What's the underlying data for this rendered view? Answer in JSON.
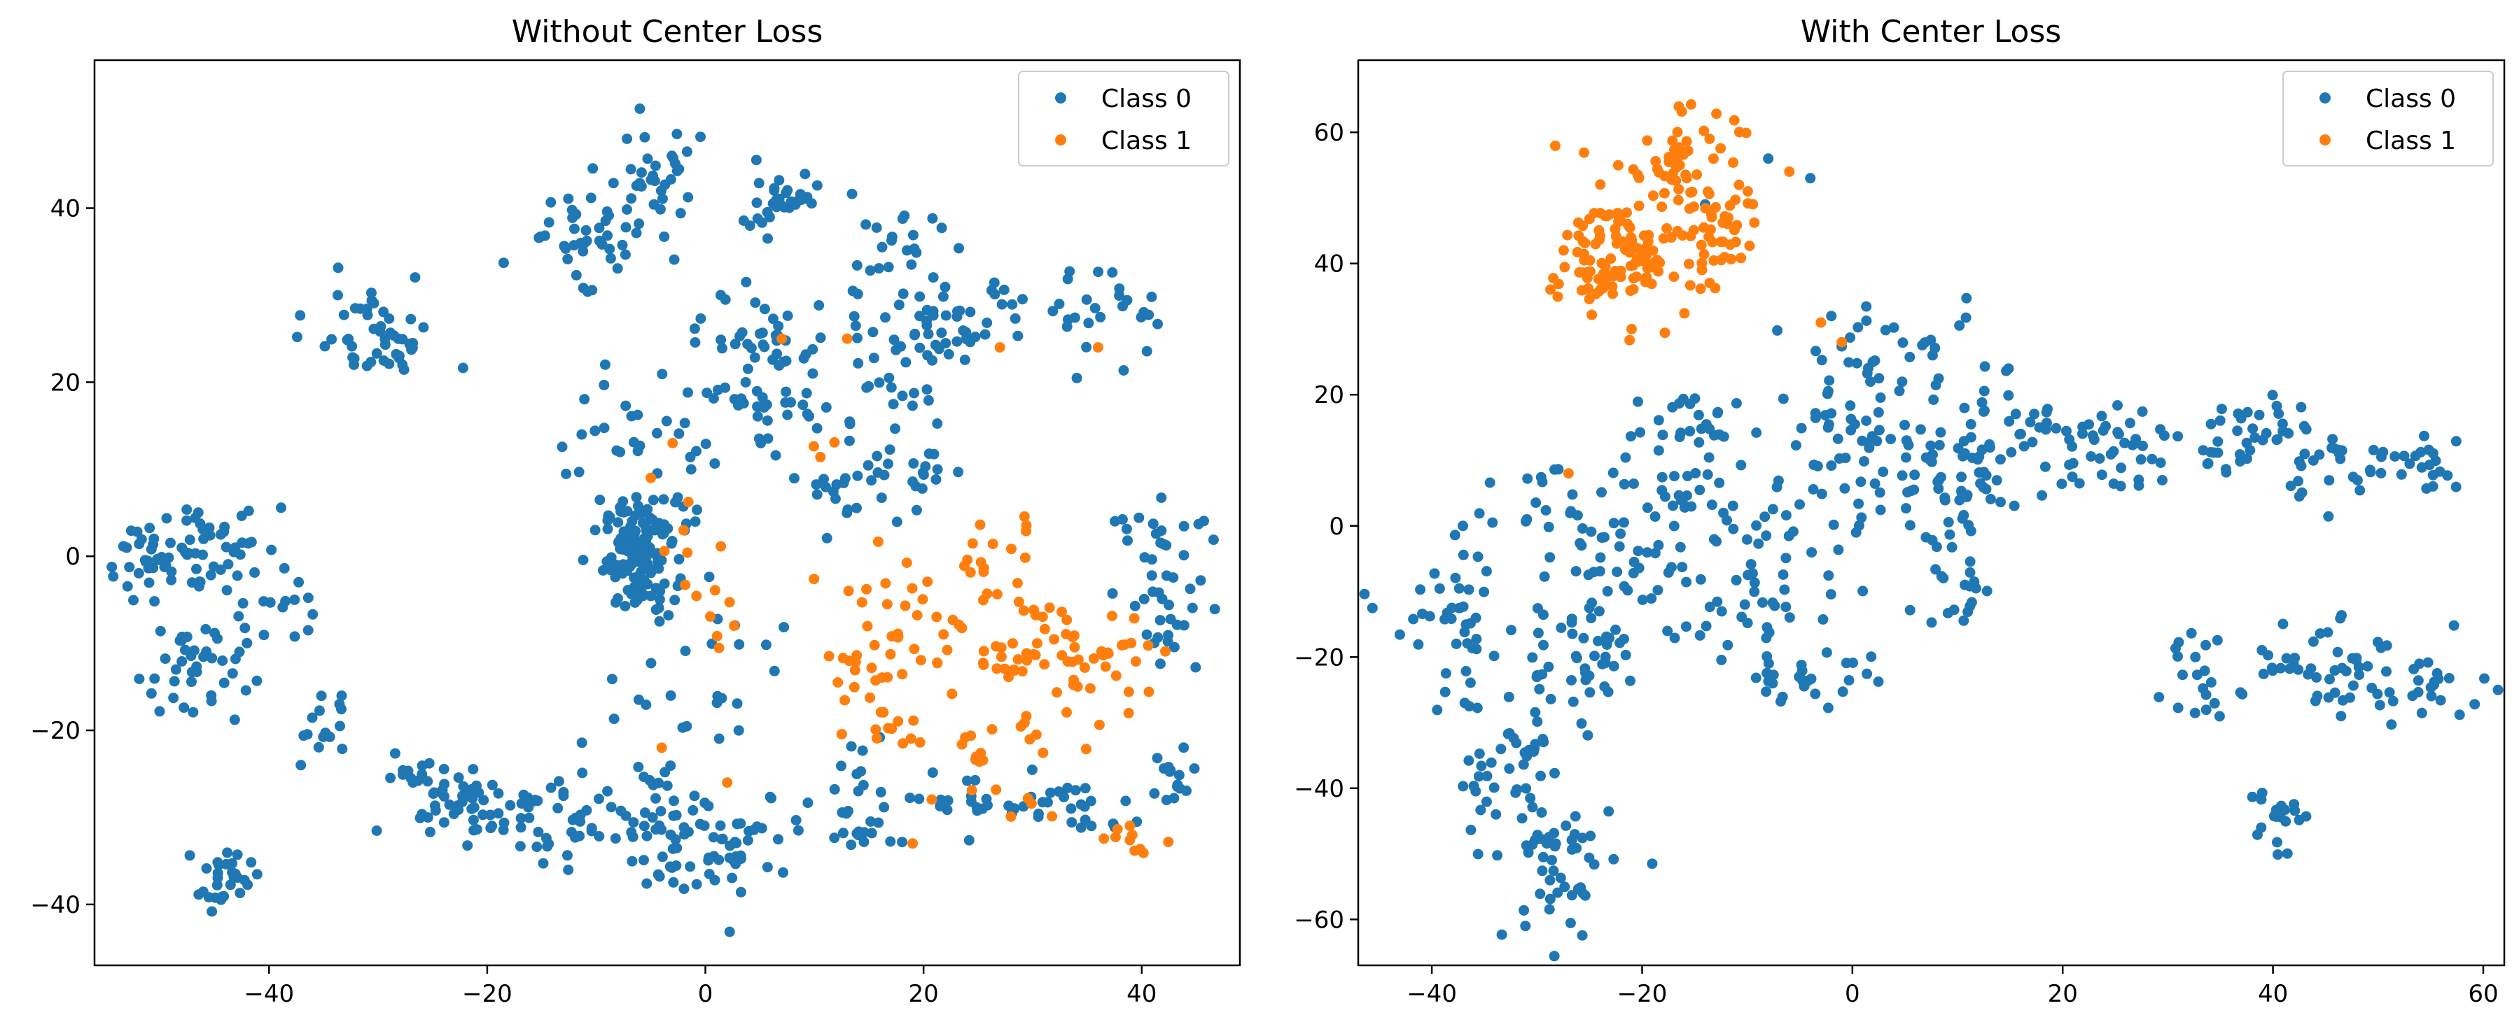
{
  "chart_data": [
    {
      "type": "scatter",
      "title": "Without Center Loss",
      "xlabel": "",
      "ylabel": "",
      "xlim": [
        -56,
        49
      ],
      "ylim": [
        -47,
        57
      ],
      "xticks": [
        -40,
        -20,
        0,
        20,
        40
      ],
      "yticks": [
        -40,
        -20,
        0,
        20,
        40
      ],
      "xtick_labels": [
        "−40",
        "−20",
        "0",
        "20",
        "40"
      ],
      "ytick_labels": [
        "−40",
        "−20",
        "0",
        "20",
        "40"
      ],
      "grid": false,
      "legend": "top-right",
      "series": [
        {
          "name": "Class 0",
          "color": "#1f77b4",
          "clusters": [
            {
              "cx": -6,
              "cy": 0,
              "sx": 1.6,
              "sy": 3.2,
              "n": 140
            },
            {
              "cx": -50,
              "cy": 0,
              "sx": 2.5,
              "sy": 2.5,
              "n": 40
            },
            {
              "cx": -44,
              "cy": 2,
              "sx": 2.5,
              "sy": 3,
              "n": 35
            },
            {
              "cx": -40,
              "cy": -6,
              "sx": 2,
              "sy": 2.5,
              "n": 15
            },
            {
              "cx": -47,
              "cy": -13,
              "sx": 2.5,
              "sy": 3,
              "n": 40
            },
            {
              "cx": -44,
              "cy": -37,
              "sx": 1.2,
              "sy": 1.6,
              "n": 30
            },
            {
              "cx": -35,
              "cy": -20,
              "sx": 1.5,
              "sy": 2,
              "n": 15
            },
            {
              "cx": -28,
              "cy": -24,
              "sx": 1.2,
              "sy": 1,
              "n": 8
            },
            {
              "cx": -30,
              "cy": 25,
              "sx": 3,
              "sy": 3,
              "n": 50
            },
            {
              "cx": -11,
              "cy": 37,
              "sx": 3,
              "sy": 2.5,
              "n": 45
            },
            {
              "cx": -5,
              "cy": 44,
              "sx": 2.5,
              "sy": 2.5,
              "n": 30
            },
            {
              "cx": 7,
              "cy": 41,
              "sx": 2.5,
              "sy": 2,
              "n": 35
            },
            {
              "cx": 17,
              "cy": 35,
              "sx": 2.5,
              "sy": 2,
              "n": 20
            },
            {
              "cx": 24,
              "cy": 28,
              "sx": 3,
              "sy": 2.5,
              "n": 35
            },
            {
              "cx": 37,
              "cy": 28,
              "sx": 2.5,
              "sy": 2.5,
              "n": 25
            },
            {
              "cx": 22,
              "cy": 25,
              "sx": 1.5,
              "sy": 1.5,
              "n": 10
            },
            {
              "cx": 6,
              "cy": 25,
              "sx": 3,
              "sy": 3,
              "n": 35
            },
            {
              "cx": 5,
              "cy": 16,
              "sx": 4,
              "sy": 3,
              "n": 40
            },
            {
              "cx": 16,
              "cy": 20,
              "sx": 2.5,
              "sy": 4,
              "n": 30
            },
            {
              "cx": -8,
              "cy": 14,
              "sx": 4,
              "sy": 4,
              "n": 25
            },
            {
              "cx": 13,
              "cy": 7,
              "sx": 2,
              "sy": 3,
              "n": 20
            },
            {
              "cx": 20,
              "cy": 10,
              "sx": 1.5,
              "sy": 2.5,
              "n": 15
            },
            {
              "cx": 42,
              "cy": 0,
              "sx": 2.5,
              "sy": 3,
              "n": 30
            },
            {
              "cx": 43,
              "cy": -8,
              "sx": 1.5,
              "sy": 3,
              "n": 15
            },
            {
              "cx": -23,
              "cy": -28,
              "sx": 3,
              "sy": 2,
              "n": 45
            },
            {
              "cx": -14,
              "cy": -30,
              "sx": 4,
              "sy": 3,
              "n": 45
            },
            {
              "cx": -5,
              "cy": -30,
              "sx": 3,
              "sy": 4,
              "n": 45
            },
            {
              "cx": 2,
              "cy": -33,
              "sx": 3,
              "sy": 3,
              "n": 45
            },
            {
              "cx": 15,
              "cy": -29,
              "sx": 3,
              "sy": 3,
              "n": 30
            },
            {
              "cx": 25,
              "cy": -28,
              "sx": 2,
              "sy": 2,
              "n": 20
            },
            {
              "cx": 33,
              "cy": -29,
              "sx": 3,
              "sy": 1.5,
              "n": 25
            },
            {
              "cx": 43,
              "cy": -26,
              "sx": 1.2,
              "sy": 3,
              "n": 15
            },
            {
              "cx": 1,
              "cy": -15,
              "sx": 4,
              "sy": 6,
              "n": 25
            },
            {
              "cx": -3,
              "cy": 5,
              "sx": 3,
              "sy": 4,
              "n": 10
            }
          ]
        },
        {
          "name": "Class 1",
          "color": "#ff7f0e",
          "clusters": [
            {
              "cx": 22,
              "cy": -7,
              "sx": 4,
              "sy": 5,
              "n": 40
            },
            {
              "cx": 30,
              "cy": -10,
              "sx": 3,
              "sy": 3,
              "n": 30
            },
            {
              "cx": 36,
              "cy": -12,
              "sx": 3,
              "sy": 3,
              "n": 30
            },
            {
              "cx": 15,
              "cy": -13,
              "sx": 2,
              "sy": 2,
              "n": 20
            },
            {
              "cx": 26,
              "cy": 1,
              "sx": 2,
              "sy": 2,
              "n": 10
            },
            {
              "cx": 17,
              "cy": -20,
              "sx": 2,
              "sy": 1,
              "n": 10
            },
            {
              "cx": 26,
              "cy": -23,
              "sx": 2.5,
              "sy": 2.5,
              "n": 20
            },
            {
              "cx": 39,
              "cy": -32,
              "sx": 1.5,
              "sy": 1,
              "n": 10
            },
            {
              "cx": -1,
              "cy": -5,
              "sx": 2,
              "sy": 4,
              "n": 12
            },
            {
              "cx": 12,
              "cy": 13,
              "sx": 1.5,
              "sy": 1.5,
              "n": 3
            },
            {
              "cx": 30,
              "cy": -30,
              "sx": 2,
              "sy": 2,
              "n": 4
            }
          ],
          "points": [
            [
              13,
              25
            ],
            [
              27,
              24
            ],
            [
              36,
              24
            ],
            [
              2,
              -26
            ],
            [
              -4,
              -22
            ],
            [
              19,
              -33
            ],
            [
              -5,
              9
            ],
            [
              -3,
              13
            ],
            [
              7,
              25
            ],
            [
              -2,
              3
            ]
          ]
        }
      ]
    },
    {
      "type": "scatter",
      "title": "With Center Loss",
      "xlabel": "",
      "ylabel": "",
      "xlim": [
        -47,
        62
      ],
      "ylim": [
        -67,
        71
      ],
      "xticks": [
        -40,
        -20,
        0,
        20,
        40,
        60
      ],
      "yticks": [
        -60,
        -40,
        -20,
        0,
        20,
        40,
        60
      ],
      "xtick_labels": [
        "−40",
        "−20",
        "0",
        "20",
        "40",
        "60"
      ],
      "ytick_labels": [
        "−60",
        "−40",
        "−20",
        "0",
        "20",
        "40",
        "60"
      ],
      "grid": false,
      "legend": "top-right",
      "series": [
        {
          "name": "Class 0",
          "color": "#1f77b4",
          "clusters": [
            {
              "cx": -38,
              "cy": -15,
              "sx": 3,
              "sy": 6,
              "n": 40
            },
            {
              "cx": -33,
              "cy": -38,
              "sx": 3,
              "sy": 6,
              "n": 40
            },
            {
              "cx": -28,
              "cy": -52,
              "sx": 2.5,
              "sy": 6,
              "n": 50
            },
            {
              "cx": -27,
              "cy": -22,
              "sx": 3,
              "sy": 6,
              "n": 45
            },
            {
              "cx": -22,
              "cy": -8,
              "sx": 4,
              "sy": 6,
              "n": 45
            },
            {
              "cx": -15,
              "cy": 5,
              "sx": 4,
              "sy": 6,
              "n": 45
            },
            {
              "cx": -8,
              "cy": -8,
              "sx": 4,
              "sy": 6,
              "n": 40
            },
            {
              "cx": -4,
              "cy": -22,
              "sx": 3,
              "sy": 3,
              "n": 30
            },
            {
              "cx": 0,
              "cy": 12,
              "sx": 4,
              "sy": 6,
              "n": 45
            },
            {
              "cx": 5,
              "cy": 25,
              "sx": 4,
              "sy": 4,
              "n": 35
            },
            {
              "cx": 8,
              "cy": 5,
              "sx": 5,
              "sy": 5,
              "n": 50
            },
            {
              "cx": 15,
              "cy": 14,
              "sx": 5,
              "sy": 4,
              "n": 40
            },
            {
              "cx": 25,
              "cy": 12,
              "sx": 4,
              "sy": 4,
              "n": 40
            },
            {
              "cx": 35,
              "cy": 13,
              "sx": 4,
              "sy": 3,
              "n": 35
            },
            {
              "cx": 45,
              "cy": 10,
              "sx": 4,
              "sy": 3,
              "n": 30
            },
            {
              "cx": 55,
              "cy": 10,
              "sx": 2,
              "sy": 3,
              "n": 20
            },
            {
              "cx": 33,
              "cy": -21,
              "sx": 1.5,
              "sy": 4,
              "n": 20
            },
            {
              "cx": 40,
              "cy": -44,
              "sx": 1.2,
              "sy": 3,
              "n": 20
            },
            {
              "cx": 44,
              "cy": -20,
              "sx": 4,
              "sy": 4,
              "n": 40
            },
            {
              "cx": 52,
              "cy": -25,
              "sx": 4,
              "sy": 3,
              "n": 30
            },
            {
              "cx": -16,
              "cy": 16,
              "sx": 3,
              "sy": 3,
              "n": 20
            },
            {
              "cx": 10,
              "cy": -10,
              "sx": 3,
              "sy": 3,
              "n": 20
            },
            {
              "cx": -30,
              "cy": 5,
              "sx": 3,
              "sy": 3,
              "n": 15
            }
          ],
          "points": [
            [
              -8,
              56
            ],
            [
              -4,
              53
            ],
            [
              -2,
              32
            ],
            [
              -14,
              49
            ]
          ]
        },
        {
          "name": "Class 1",
          "color": "#ff7f0e",
          "clusters": [
            {
              "cx": -20,
              "cy": 42,
              "sx": 3.5,
              "sy": 5,
              "n": 110
            },
            {
              "cx": -16,
              "cy": 56,
              "sx": 2.5,
              "sy": 3.5,
              "n": 50
            },
            {
              "cx": -12,
              "cy": 46,
              "sx": 1.5,
              "sy": 4,
              "n": 25
            },
            {
              "cx": -24,
              "cy": 37,
              "sx": 2,
              "sy": 2,
              "n": 30
            }
          ],
          "points": [
            [
              -1,
              28
            ],
            [
              -3,
              31
            ],
            [
              -27,
              8
            ],
            [
              -6,
              54
            ],
            [
              -21,
              30
            ]
          ]
        }
      ]
    }
  ]
}
